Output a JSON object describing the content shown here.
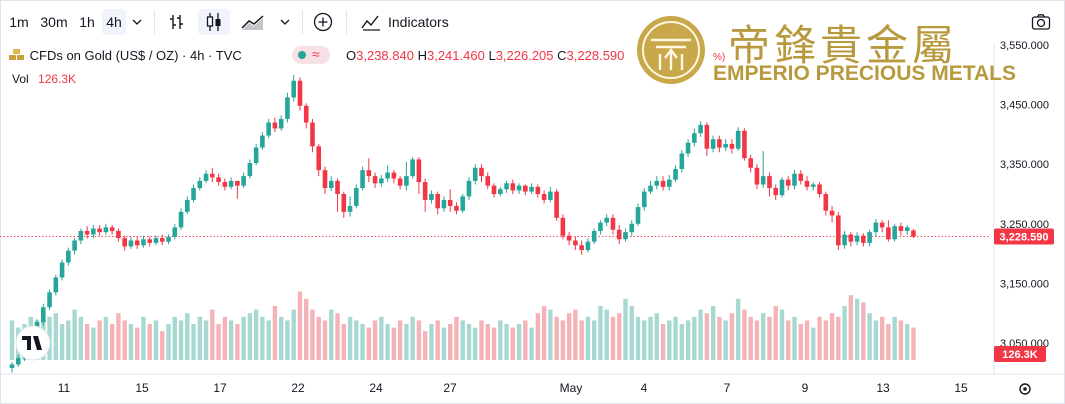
{
  "toolbar": {
    "intervals": [
      "1m",
      "30m",
      "1h",
      "4h"
    ],
    "active_interval": "4h",
    "indicators_label": "Indicators"
  },
  "legend": {
    "symbol": "CFDs on Gold (US$ / OZ) · 4h · TVC",
    "o_key": "O",
    "o": "3,238.840",
    "h_key": "H",
    "h": "3,241.460",
    "l_key": "L",
    "l": "3,226.205",
    "c_key": "C",
    "c": "3,228.590",
    "pct_fragment": "%)",
    "vol_key": "Vol",
    "vol": "126.3K"
  },
  "watermark": {
    "chinese": "帝鋒貴金屬",
    "english": "EMPERIO PRECIOUS METALS"
  },
  "colors": {
    "up": "#26a69a",
    "down": "#f23645",
    "up_vol": "#a7d9d2",
    "down_vol": "#f5b3b8",
    "gold": "#b89a3e"
  },
  "chart_data": {
    "type": "candlestick",
    "y_ticks": [
      "3,550.000",
      "3,450.000",
      "3,350.000",
      "3,250.000",
      "3,150.000",
      "3,050.000"
    ],
    "y_tick_values": [
      3550,
      3450,
      3350,
      3250,
      3150,
      3050
    ],
    "x_ticks": [
      "11",
      "15",
      "17",
      "22",
      "24",
      "27",
      "May",
      "4",
      "7",
      "9",
      "13",
      "15"
    ],
    "last_price": 3228.59,
    "last_price_label": "3,228.590",
    "last_volume_label": "126.3K",
    "candles": [
      [
        3008,
        3014,
        3000,
        3018
      ],
      [
        3014,
        3025,
        3010,
        3030
      ],
      [
        3025,
        3042,
        3020,
        3046
      ],
      [
        3042,
        3060,
        3038,
        3064
      ],
      [
        3060,
        3085,
        3055,
        3090
      ],
      [
        3085,
        3110,
        3080,
        3116
      ],
      [
        3110,
        3135,
        3105,
        3140
      ],
      [
        3135,
        3160,
        3130,
        3165
      ],
      [
        3160,
        3185,
        3155,
        3190
      ],
      [
        3185,
        3205,
        3180,
        3210
      ],
      [
        3205,
        3222,
        3198,
        3226
      ],
      [
        3222,
        3238,
        3216,
        3242
      ],
      [
        3238,
        3232,
        3225,
        3246
      ],
      [
        3232,
        3242,
        3226,
        3248
      ],
      [
        3242,
        3236,
        3230,
        3248
      ],
      [
        3236,
        3244,
        3232,
        3250
      ],
      [
        3244,
        3238,
        3232,
        3248
      ],
      [
        3238,
        3226,
        3220,
        3242
      ],
      [
        3226,
        3212,
        3205,
        3230
      ],
      [
        3212,
        3222,
        3208,
        3228
      ],
      [
        3222,
        3214,
        3208,
        3228
      ],
      [
        3214,
        3224,
        3210,
        3230
      ],
      [
        3224,
        3218,
        3212,
        3228
      ],
      [
        3218,
        3226,
        3214,
        3230
      ],
      [
        3226,
        3220,
        3214,
        3232
      ],
      [
        3220,
        3228,
        3216,
        3232
      ],
      [
        3228,
        3244,
        3224,
        3250
      ],
      [
        3244,
        3270,
        3240,
        3276
      ],
      [
        3270,
        3290,
        3266,
        3296
      ],
      [
        3290,
        3310,
        3286,
        3316
      ],
      [
        3310,
        3322,
        3306,
        3328
      ],
      [
        3322,
        3334,
        3318,
        3340
      ],
      [
        3334,
        3328,
        3320,
        3344
      ],
      [
        3328,
        3320,
        3314,
        3334
      ],
      [
        3320,
        3312,
        3306,
        3326
      ],
      [
        3312,
        3322,
        3308,
        3328
      ],
      [
        3322,
        3314,
        3292,
        3318
      ],
      [
        3314,
        3330,
        3310,
        3336
      ],
      [
        3330,
        3352,
        3326,
        3358
      ],
      [
        3352,
        3378,
        3348,
        3384
      ],
      [
        3378,
        3398,
        3374,
        3404
      ],
      [
        3398,
        3420,
        3394,
        3426
      ],
      [
        3420,
        3410,
        3404,
        3428
      ],
      [
        3410,
        3426,
        3406,
        3432
      ],
      [
        3426,
        3462,
        3420,
        3470
      ],
      [
        3462,
        3490,
        3455,
        3500
      ],
      [
        3490,
        3448,
        3440,
        3496
      ],
      [
        3448,
        3420,
        3410,
        3452
      ],
      [
        3420,
        3380,
        3370,
        3426
      ],
      [
        3380,
        3340,
        3330,
        3384
      ],
      [
        3340,
        3310,
        3300,
        3346
      ],
      [
        3310,
        3322,
        3305,
        3330
      ],
      [
        3322,
        3300,
        3270,
        3326
      ],
      [
        3300,
        3270,
        3260,
        3304
      ],
      [
        3270,
        3280,
        3262,
        3296
      ],
      [
        3280,
        3310,
        3276,
        3316
      ],
      [
        3310,
        3340,
        3306,
        3346
      ],
      [
        3340,
        3330,
        3320,
        3360
      ],
      [
        3330,
        3318,
        3310,
        3336
      ],
      [
        3318,
        3326,
        3312,
        3332
      ],
      [
        3326,
        3336,
        3320,
        3348
      ],
      [
        3336,
        3326,
        3318,
        3340
      ],
      [
        3326,
        3314,
        3308,
        3330
      ],
      [
        3314,
        3330,
        3306,
        3354
      ],
      [
        3330,
        3358,
        3326,
        3362
      ],
      [
        3358,
        3320,
        3300,
        3362
      ],
      [
        3320,
        3290,
        3270,
        3326
      ],
      [
        3290,
        3300,
        3284,
        3306
      ],
      [
        3300,
        3276,
        3266,
        3304
      ],
      [
        3276,
        3290,
        3270,
        3296
      ],
      [
        3290,
        3280,
        3270,
        3308
      ],
      [
        3280,
        3272,
        3266,
        3286
      ],
      [
        3272,
        3296,
        3268,
        3300
      ],
      [
        3296,
        3322,
        3290,
        3328
      ],
      [
        3322,
        3344,
        3316,
        3350
      ],
      [
        3344,
        3330,
        3320,
        3350
      ],
      [
        3330,
        3314,
        3308,
        3336
      ],
      [
        3314,
        3300,
        3294,
        3318
      ],
      [
        3300,
        3308,
        3296,
        3312
      ],
      [
        3308,
        3318,
        3302,
        3322
      ],
      [
        3318,
        3306,
        3300,
        3324
      ],
      [
        3306,
        3314,
        3300,
        3318
      ],
      [
        3314,
        3304,
        3298,
        3316
      ],
      [
        3304,
        3312,
        3300,
        3318
      ],
      [
        3312,
        3300,
        3294,
        3316
      ],
      [
        3300,
        3290,
        3284,
        3306
      ],
      [
        3290,
        3304,
        3286,
        3312
      ],
      [
        3304,
        3260,
        3255,
        3308
      ],
      [
        3260,
        3230,
        3224,
        3266
      ],
      [
        3230,
        3222,
        3214,
        3236
      ],
      [
        3222,
        3214,
        3206,
        3228
      ],
      [
        3214,
        3206,
        3198,
        3222
      ],
      [
        3206,
        3220,
        3202,
        3226
      ],
      [
        3220,
        3238,
        3216,
        3242
      ],
      [
        3238,
        3252,
        3232,
        3256
      ],
      [
        3252,
        3260,
        3246,
        3266
      ],
      [
        3260,
        3240,
        3232,
        3266
      ],
      [
        3240,
        3224,
        3216,
        3248
      ],
      [
        3224,
        3236,
        3220,
        3242
      ],
      [
        3236,
        3250,
        3230,
        3256
      ],
      [
        3250,
        3278,
        3246,
        3284
      ],
      [
        3278,
        3304,
        3272,
        3310
      ],
      [
        3304,
        3314,
        3300,
        3322
      ],
      [
        3314,
        3322,
        3308,
        3330
      ],
      [
        3322,
        3312,
        3306,
        3330
      ],
      [
        3312,
        3324,
        3306,
        3332
      ],
      [
        3324,
        3342,
        3320,
        3348
      ],
      [
        3342,
        3368,
        3336,
        3374
      ],
      [
        3368,
        3386,
        3362,
        3392
      ],
      [
        3386,
        3402,
        3380,
        3410
      ],
      [
        3402,
        3416,
        3396,
        3422
      ],
      [
        3416,
        3376,
        3364,
        3420
      ],
      [
        3376,
        3392,
        3370,
        3398
      ],
      [
        3392,
        3378,
        3370,
        3398
      ],
      [
        3378,
        3384,
        3372,
        3392
      ],
      [
        3384,
        3376,
        3368,
        3392
      ],
      [
        3376,
        3406,
        3372,
        3412
      ],
      [
        3406,
        3360,
        3356,
        3410
      ],
      [
        3360,
        3344,
        3336,
        3366
      ],
      [
        3344,
        3316,
        3308,
        3350
      ],
      [
        3316,
        3330,
        3310,
        3372
      ],
      [
        3330,
        3310,
        3296,
        3336
      ],
      [
        3310,
        3298,
        3290,
        3316
      ],
      [
        3298,
        3324,
        3294,
        3328
      ],
      [
        3324,
        3314,
        3306,
        3330
      ],
      [
        3314,
        3334,
        3308,
        3340
      ],
      [
        3334,
        3322,
        3316,
        3340
      ],
      [
        3322,
        3312,
        3306,
        3330
      ],
      [
        3312,
        3316,
        3306,
        3320
      ],
      [
        3316,
        3300,
        3294,
        3320
      ],
      [
        3300,
        3272,
        3264,
        3304
      ],
      [
        3272,
        3264,
        3252,
        3280
      ],
      [
        3264,
        3214,
        3206,
        3270
      ],
      [
        3214,
        3232,
        3208,
        3238
      ],
      [
        3232,
        3220,
        3212,
        3236
      ],
      [
        3220,
        3230,
        3214,
        3236
      ],
      [
        3230,
        3218,
        3212,
        3234
      ],
      [
        3218,
        3236,
        3212,
        3240
      ],
      [
        3236,
        3252,
        3228,
        3258
      ],
      [
        3252,
        3244,
        3236,
        3256
      ],
      [
        3244,
        3224,
        3220,
        3256
      ],
      [
        3224,
        3246,
        3220,
        3250
      ],
      [
        3246,
        3238,
        3230,
        3252
      ],
      [
        3238,
        3244,
        3232,
        3248
      ],
      [
        3238.84,
        3228.59,
        3226.205,
        3241.46
      ]
    ],
    "volume_levels": [
      0.55,
      0.45,
      0.5,
      0.6,
      0.55,
      0.7,
      0.6,
      0.65,
      0.5,
      0.55,
      0.7,
      0.6,
      0.5,
      0.45,
      0.55,
      0.6,
      0.5,
      0.65,
      0.55,
      0.5,
      0.45,
      0.6,
      0.5,
      0.55,
      0.4,
      0.5,
      0.6,
      0.55,
      0.65,
      0.5,
      0.6,
      0.55,
      0.7,
      0.5,
      0.6,
      0.55,
      0.5,
      0.6,
      0.65,
      0.7,
      0.6,
      0.55,
      0.75,
      0.6,
      0.55,
      0.7,
      0.95,
      0.85,
      0.7,
      0.6,
      0.55,
      0.7,
      0.65,
      0.5,
      0.6,
      0.55,
      0.5,
      0.45,
      0.55,
      0.6,
      0.5,
      0.45,
      0.55,
      0.5,
      0.6,
      0.55,
      0.4,
      0.5,
      0.55,
      0.45,
      0.5,
      0.6,
      0.55,
      0.5,
      0.45,
      0.55,
      0.5,
      0.45,
      0.55,
      0.5,
      0.45,
      0.5,
      0.55,
      0.45,
      0.65,
      0.75,
      0.7,
      0.6,
      0.55,
      0.65,
      0.7,
      0.55,
      0.6,
      0.55,
      0.75,
      0.7,
      0.6,
      0.65,
      0.85,
      0.75,
      0.6,
      0.55,
      0.6,
      0.65,
      0.5,
      0.55,
      0.6,
      0.5,
      0.55,
      0.6,
      0.7,
      0.65,
      0.75,
      0.6,
      0.55,
      0.65,
      0.85,
      0.7,
      0.6,
      0.55,
      0.65,
      0.6,
      0.75,
      0.7,
      0.55,
      0.6,
      0.5,
      0.55,
      0.45,
      0.6,
      0.55,
      0.65,
      0.6,
      0.75,
      0.9,
      0.85,
      0.8,
      0.65,
      0.55,
      0.6,
      0.5,
      0.6,
      0.55,
      0.5,
      0.45
    ]
  }
}
